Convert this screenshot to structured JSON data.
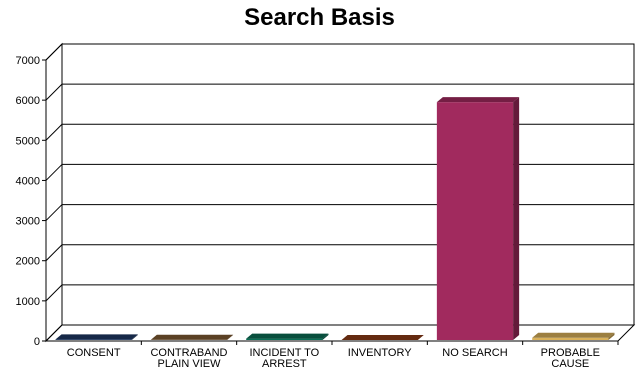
{
  "chart_data": {
    "type": "bar",
    "title": "Search Basis",
    "xlabel": "",
    "ylabel": "",
    "categories": [
      "CONSENT",
      "CONTRABAND PLAIN VIEW",
      "INCIDENT TO ARREST",
      "INVENTORY",
      "NO SEARCH",
      "PROBABLE CAUSE"
    ],
    "category_lines": [
      [
        "CONSENT"
      ],
      [
        "CONTRABAND",
        "PLAIN VIEW"
      ],
      [
        "INCIDENT TO",
        "ARREST"
      ],
      [
        "INVENTORY"
      ],
      [
        "NO SEARCH"
      ],
      [
        "PROBABLE",
        "CAUSE"
      ]
    ],
    "values": [
      40,
      30,
      60,
      25,
      5950,
      80
    ],
    "colors": [
      "#1f3864",
      "#7f5a32",
      "#0b6e55",
      "#8b3a16",
      "#a12a5e",
      "#d9b15a"
    ],
    "ylim": [
      0,
      7000
    ],
    "yticks": [
      0,
      1000,
      2000,
      3000,
      4000,
      5000,
      6000,
      7000
    ],
    "grid": true,
    "legend": "none",
    "style": "3d"
  }
}
